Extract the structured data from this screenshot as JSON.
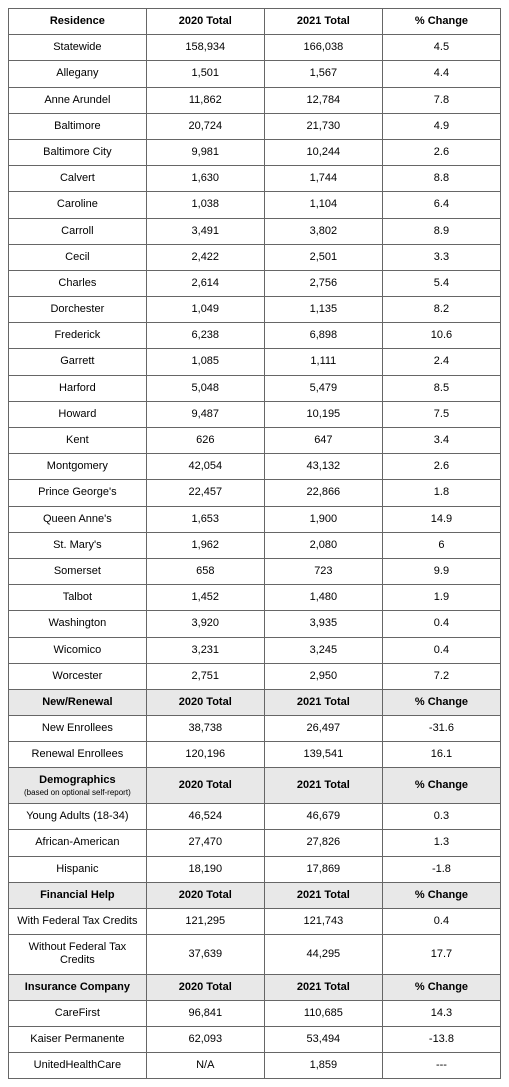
{
  "columns": [
    "Residence",
    "2020 Total",
    "2021 Total",
    "% Change"
  ],
  "sections": [
    {
      "header": null,
      "rows": [
        [
          "Statewide",
          "158,934",
          "166,038",
          "4.5"
        ],
        [
          "Allegany",
          "1,501",
          "1,567",
          "4.4"
        ],
        [
          "Anne Arundel",
          "11,862",
          "12,784",
          "7.8"
        ],
        [
          "Baltimore",
          "20,724",
          "21,730",
          "4.9"
        ],
        [
          "Baltimore City",
          "9,981",
          "10,244",
          "2.6"
        ],
        [
          "Calvert",
          "1,630",
          "1,744",
          "8.8"
        ],
        [
          "Caroline",
          "1,038",
          "1,104",
          "6.4"
        ],
        [
          "Carroll",
          "3,491",
          "3,802",
          "8.9"
        ],
        [
          "Cecil",
          "2,422",
          "2,501",
          "3.3"
        ],
        [
          "Charles",
          "2,614",
          "2,756",
          "5.4"
        ],
        [
          "Dorchester",
          "1,049",
          "1,135",
          "8.2"
        ],
        [
          "Frederick",
          "6,238",
          "6,898",
          "10.6"
        ],
        [
          "Garrett",
          "1,085",
          "1,111",
          "2.4"
        ],
        [
          "Harford",
          "5,048",
          "5,479",
          "8.5"
        ],
        [
          "Howard",
          "9,487",
          "10,195",
          "7.5"
        ],
        [
          "Kent",
          "626",
          "647",
          "3.4"
        ],
        [
          "Montgomery",
          "42,054",
          "43,132",
          "2.6"
        ],
        [
          "Prince George's",
          "22,457",
          "22,866",
          "1.8"
        ],
        [
          "Queen Anne's",
          "1,653",
          "1,900",
          "14.9"
        ],
        [
          "St. Mary's",
          "1,962",
          "2,080",
          "6"
        ],
        [
          "Somerset",
          "658",
          "723",
          "9.9"
        ],
        [
          "Talbot",
          "1,452",
          "1,480",
          "1.9"
        ],
        [
          "Washington",
          "3,920",
          "3,935",
          "0.4"
        ],
        [
          "Wicomico",
          "3,231",
          "3,245",
          "0.4"
        ],
        [
          "Worcester",
          "2,751",
          "2,950",
          "7.2"
        ]
      ]
    },
    {
      "header": [
        "New/Renewal",
        "2020 Total",
        "2021 Total",
        "% Change"
      ],
      "rows": [
        [
          "New Enrollees",
          "38,738",
          "26,497",
          "-31.6"
        ],
        [
          "Renewal Enrollees",
          "120,196",
          "139,541",
          "16.1"
        ]
      ]
    },
    {
      "header": [
        "Demographics",
        "2020 Total",
        "2021 Total",
        "% Change"
      ],
      "header_note": "(based on optional self-report)",
      "rows": [
        [
          "Young Adults (18-34)",
          "46,524",
          "46,679",
          "0.3"
        ],
        [
          "African-American",
          "27,470",
          "27,826",
          "1.3"
        ],
        [
          "Hispanic",
          "18,190",
          "17,869",
          "-1.8"
        ]
      ]
    },
    {
      "header": [
        "Financial Help",
        "2020 Total",
        "2021 Total",
        "% Change"
      ],
      "rows": [
        [
          "With Federal Tax Credits",
          "121,295",
          "121,743",
          "0.4"
        ],
        [
          "Without Federal Tax Credits",
          "37,639",
          "44,295",
          "17.7"
        ]
      ]
    },
    {
      "header": [
        "Insurance Company",
        "2020 Total",
        "2021 Total",
        "% Change"
      ],
      "rows": [
        [
          "CareFirst",
          "96,841",
          "110,685",
          "14.3"
        ],
        [
          "Kaiser Permanente",
          "62,093",
          "53,494",
          "-13.8"
        ],
        [
          "UnitedHealthCare",
          "N/A",
          "1,859",
          "---"
        ]
      ]
    }
  ]
}
